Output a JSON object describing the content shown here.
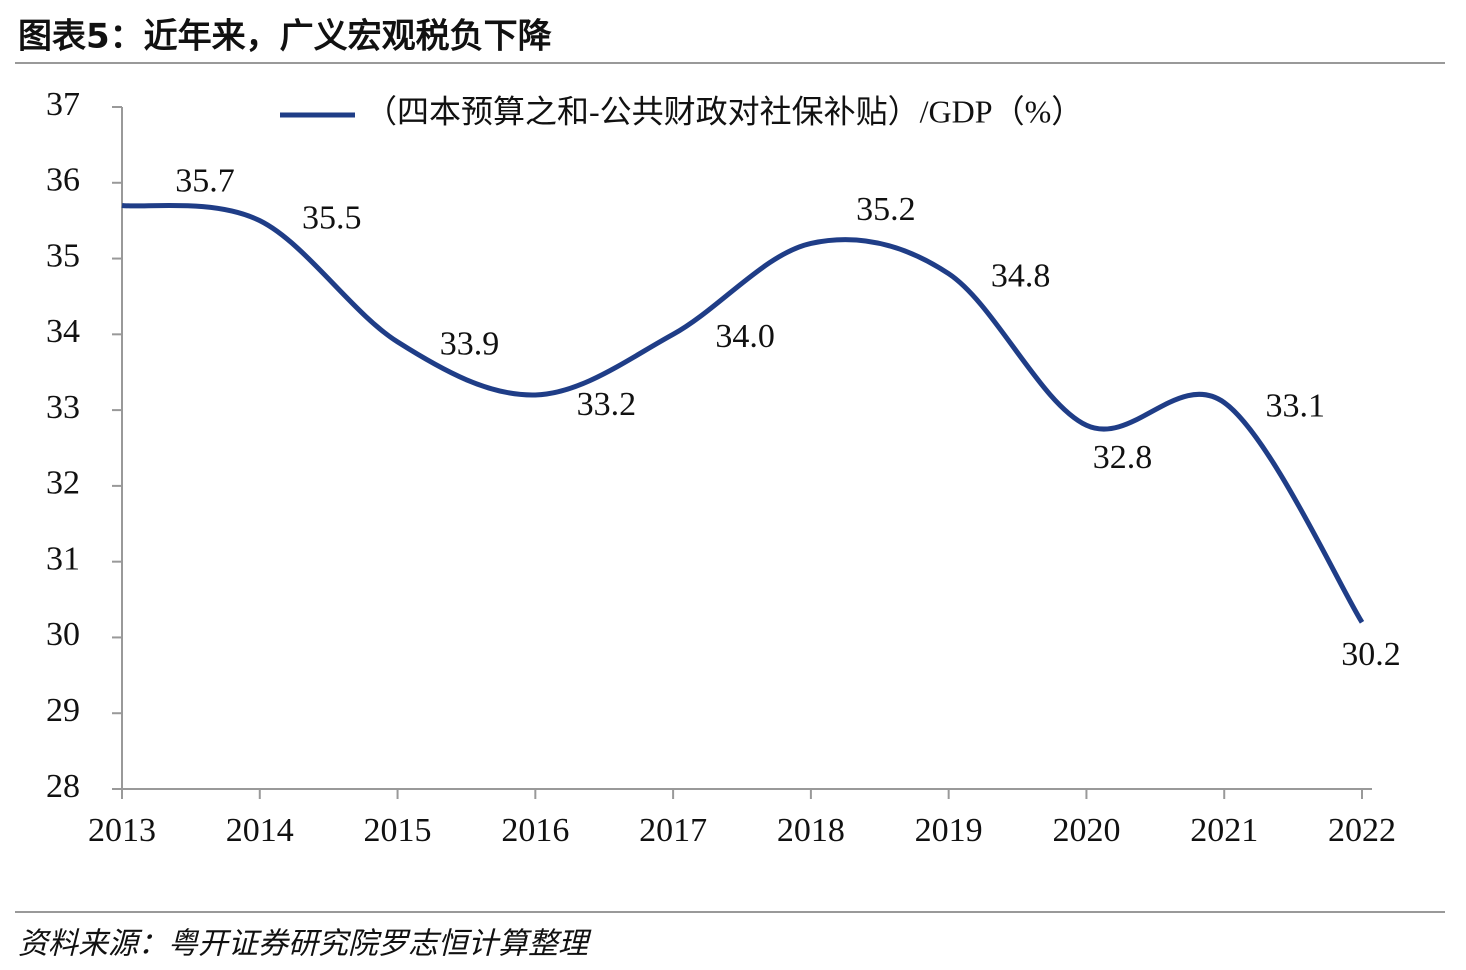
{
  "chart_data": {
    "type": "line",
    "title": "图表5：近年来，广义宏观税负下降",
    "source": "资料来源：粤开证券研究院罗志恒计算整理",
    "categories": [
      "2013",
      "2014",
      "2015",
      "2016",
      "2017",
      "2018",
      "2019",
      "2020",
      "2021",
      "2022"
    ],
    "series": [
      {
        "name": "（四本预算之和-公共财政对社保补贴）/GDP（%）",
        "color": "#1f3d87",
        "values": [
          35.7,
          35.5,
          33.9,
          33.2,
          34.0,
          35.2,
          34.8,
          32.8,
          33.1,
          30.2
        ],
        "value_labels": [
          "35.7",
          "35.5",
          "33.9",
          "33.2",
          "34.0",
          "35.2",
          "34.8",
          "32.8",
          "33.1",
          "30.2"
        ]
      }
    ],
    "ylim": [
      28,
      37
    ],
    "yticks": [
      28,
      29,
      30,
      31,
      32,
      33,
      34,
      35,
      36,
      37
    ],
    "grid": false,
    "legend": "top",
    "smooth": true
  }
}
